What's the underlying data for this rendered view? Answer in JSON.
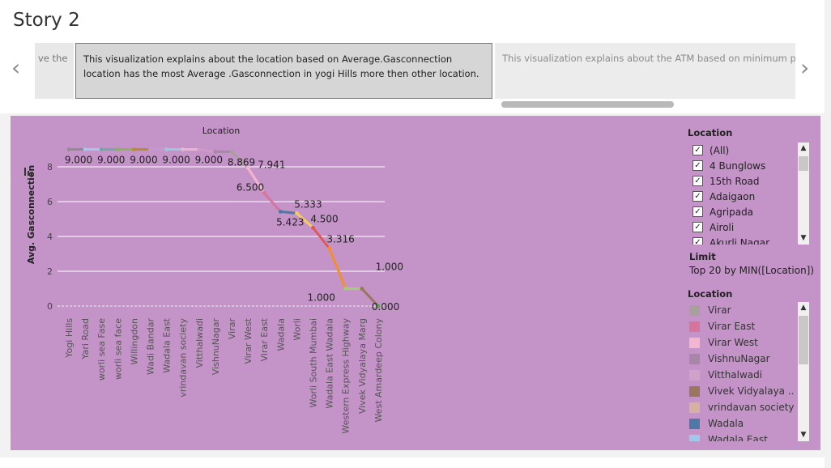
{
  "story": {
    "title": "Story 2",
    "captions": {
      "prev": "ve the",
      "current": "This visualization explains about the location based on Average.Gasconnection location has the most Average .Gasconnection in yogi Hills more then other location.",
      "next": "This visualization explains about the ATM based on minimum pri"
    }
  },
  "chart_data": {
    "type": "line",
    "title": "Location",
    "xlabel": "",
    "ylabel": "Avg. Gasconnection",
    "ylim": [
      0,
      9.0
    ],
    "yticks": [
      "0",
      "2",
      "4",
      "6",
      "8"
    ],
    "categories": [
      "Yogi Hills",
      "Yari Road",
      "worli sea Fase",
      "worli sea face",
      "Willingdon",
      "Wadi Bandar",
      "Wadala East",
      "vrindavan society",
      "Vitthalwadi",
      "VishnuNagar",
      "Virar",
      "Virar West",
      "Virar East",
      "Wadala",
      "Worli",
      "Worli South Mumbai",
      "Wadala East Wadala",
      "Western Express Highway",
      "Vivek Vidyalaya Marg",
      "West Amardeep Colony"
    ],
    "values": [
      9.0,
      9.0,
      9.0,
      9.0,
      9.0,
      9.0,
      9.0,
      9.0,
      9.0,
      8.869,
      8.869,
      7.941,
      6.5,
      5.423,
      5.333,
      4.5,
      3.316,
      1.0,
      1.0,
      0.0
    ],
    "point_colors": [
      "#8e8e8e",
      "#a3c8e8",
      "#73a9a3",
      "#8fb15c",
      "#b98b2f",
      "#c29ad0",
      "#9ec5e0",
      "#e7b7d0",
      "#d09ac8",
      "#a886a8",
      "#a8a09a",
      "#f2b6cf",
      "#d7749c",
      "#4e79a7",
      "#f2cf5c",
      "#e15759",
      "#f28e2b",
      "#a0cf74",
      "#9c755f",
      "#59a14f"
    ],
    "data_labels": [
      {
        "index": 0,
        "text": "9.000"
      },
      {
        "index": 2,
        "text": "9.000"
      },
      {
        "index": 4,
        "text": "9.000"
      },
      {
        "index": 6,
        "text": "9.000"
      },
      {
        "index": 8,
        "text": "9.000"
      },
      {
        "index": 10,
        "text": "8.869"
      },
      {
        "index": 11,
        "text": "7.941"
      },
      {
        "index": 12,
        "text": "6.500"
      },
      {
        "index": 13,
        "text": "5.423"
      },
      {
        "index": 14,
        "text": "5.333"
      },
      {
        "index": 15,
        "text": "4.500"
      },
      {
        "index": 16,
        "text": "3.316"
      },
      {
        "index": 17,
        "text": "1.000"
      },
      {
        "index": 18,
        "text": "1.000"
      },
      {
        "index": 19,
        "text": "0.000"
      }
    ]
  },
  "filter": {
    "title": "Location",
    "items": [
      "(All)",
      "4 Bunglows",
      "15th Road",
      "Adaigaon",
      "Agripada",
      "Airoli",
      "Akurli Nagar"
    ],
    "check_mark": "✓"
  },
  "limit": {
    "label": "Limit",
    "value": "Top 20 by MIN([Location])"
  },
  "color_legend": {
    "title": "Location",
    "items": [
      {
        "label": "Virar",
        "color": "#a8a09a"
      },
      {
        "label": "Virar East",
        "color": "#d7749c"
      },
      {
        "label": "Virar West",
        "color": "#f2b6cf"
      },
      {
        "label": "VishnuNagar",
        "color": "#a886a8"
      },
      {
        "label": "Vitthalwadi",
        "color": "#d0a2c8"
      },
      {
        "label": "Vivek Vidyalaya ..",
        "color": "#9c755f"
      },
      {
        "label": "vrindavan society",
        "color": "#d6b0a0"
      },
      {
        "label": "Wadala",
        "color": "#4e79a7"
      },
      {
        "label": "Wadala East",
        "color": "#a0c8e8"
      }
    ]
  },
  "icons": {
    "left_arrow": "‹",
    "right_arrow": "›",
    "scroll_up": "▲",
    "scroll_down": "▼"
  }
}
